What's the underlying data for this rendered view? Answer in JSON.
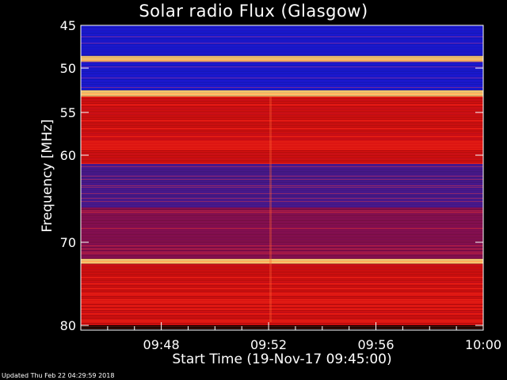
{
  "chart_data": {
    "type": "heatmap",
    "title": "Solar radio Flux (Glasgow)",
    "xlabel": "Start Time (19-Nov-17 09:45:00)",
    "ylabel": "Frequency [MHz]",
    "xlim": [
      "09:45",
      "10:00"
    ],
    "ylim": [
      45,
      80
    ],
    "y_inverted": true,
    "x_ticks": [
      "09:48",
      "09:52",
      "09:56",
      "10:00"
    ],
    "y_ticks": [
      45,
      50,
      55,
      60,
      70,
      80
    ],
    "colormap": "blue-red-yellow",
    "bands": [
      {
        "from": 45,
        "to": 48.5,
        "level": "low"
      },
      {
        "from": 48.5,
        "to": 49.2,
        "level": "very high"
      },
      {
        "from": 49.2,
        "to": 52.5,
        "level": "low"
      },
      {
        "from": 52.5,
        "to": 53.2,
        "level": "very high"
      },
      {
        "from": 53.2,
        "to": 61,
        "level": "high"
      },
      {
        "from": 61,
        "to": 66,
        "level": "medium"
      },
      {
        "from": 66,
        "to": 72,
        "level": "medium-high"
      },
      {
        "from": 72,
        "to": 72.6,
        "level": "very high"
      },
      {
        "from": 72.6,
        "to": 80,
        "level": "high"
      }
    ],
    "colors": {
      "low": "#1010d0",
      "medium": "#5a1a8c",
      "high": "#e01010",
      "peak": "#ffd060"
    }
  },
  "footer": {
    "updated": "Updated Thu Feb 22 04:29:59 2018"
  }
}
